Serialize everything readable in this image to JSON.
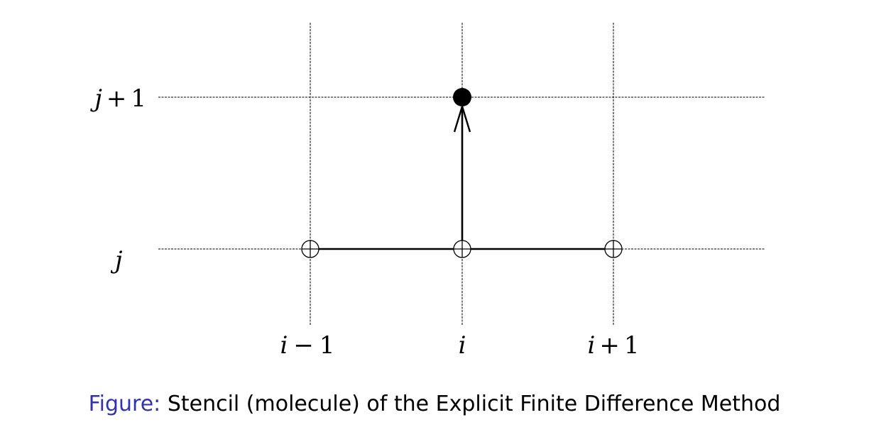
{
  "diagram": {
    "rows": [
      {
        "id": "j_plus_1",
        "var": "j",
        "op": "+",
        "num": "1"
      },
      {
        "id": "j",
        "var": "j",
        "op": "",
        "num": ""
      }
    ],
    "columns": [
      {
        "id": "i_minus_1",
        "var": "i",
        "op": "−",
        "num": "1"
      },
      {
        "id": "i",
        "var": "i",
        "op": "",
        "num": ""
      },
      {
        "id": "i_plus_1",
        "var": "i",
        "op": "+",
        "num": "1"
      }
    ],
    "known_points": [
      {
        "column": "i_minus_1",
        "row": "j"
      },
      {
        "column": "i",
        "row": "j"
      },
      {
        "column": "i_plus_1",
        "row": "j"
      }
    ],
    "unknown_point": {
      "column": "i",
      "row": "j_plus_1"
    },
    "arrow": {
      "from": {
        "column": "i",
        "row": "j"
      },
      "to": {
        "column": "i",
        "row": "j_plus_1"
      }
    },
    "colors": {
      "lines": "#000000",
      "caption_label": "#3333b2",
      "caption_text": "#000000"
    }
  },
  "caption": {
    "label": "Figure:",
    "text": "Stencil (molecule) of the Explicit Finite Difference Method"
  }
}
